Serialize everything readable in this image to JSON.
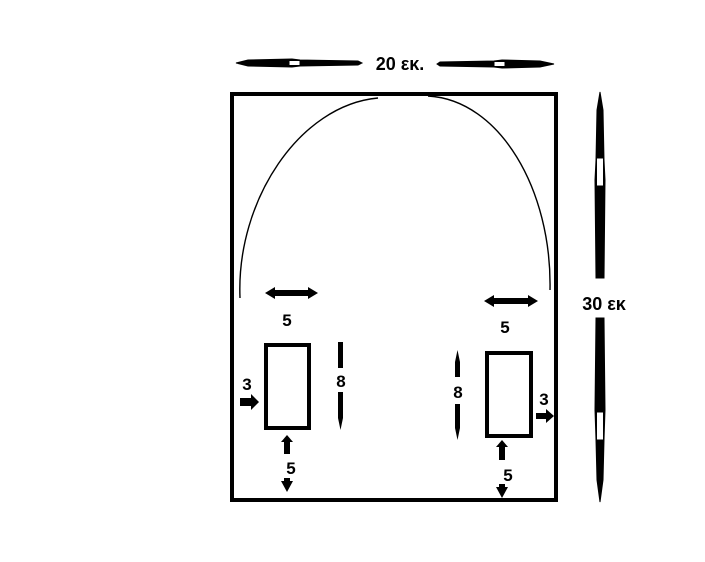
{
  "labels": {
    "width": "20 εκ.",
    "height": "30 εκ",
    "left_spacing_top": "5",
    "right_spacing_top": "5",
    "left_side_margin": "3",
    "right_side_margin": "3",
    "left_rect_height": "8",
    "right_rect_height": "8",
    "left_bottom_margin": "5",
    "right_bottom_margin": "5"
  },
  "colors": {
    "ink": "#000000",
    "background": "#ffffff"
  }
}
